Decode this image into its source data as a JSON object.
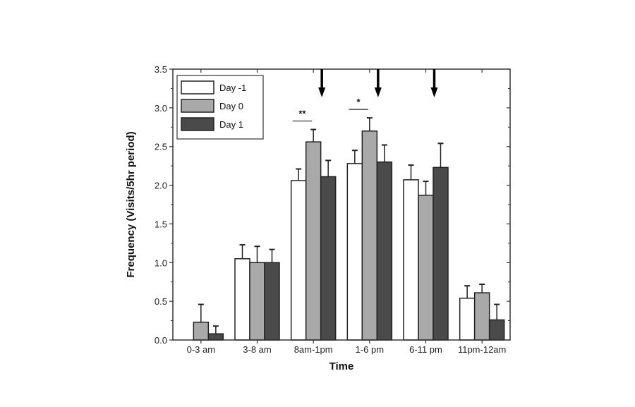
{
  "chart_data": {
    "type": "bar",
    "title": "",
    "xlabel": "Time",
    "ylabel": "Frequency (Visits/5hr period)",
    "ylim": [
      0,
      3.5
    ],
    "yticks": [
      "0.0",
      "0.5",
      "1.0",
      "1.5",
      "2.0",
      "2.5",
      "3.0",
      "3.5"
    ],
    "categories": [
      "0-3 am",
      "3-8 am",
      "8am-1pm",
      "1-6 pm",
      "6-11 pm",
      "11pm-12am"
    ],
    "series": [
      {
        "name": "Day -1",
        "color": "#ffffff",
        "values": [
          0.0,
          1.05,
          2.06,
          2.28,
          2.07,
          0.54
        ],
        "error_upper": [
          0.0,
          0.18,
          0.15,
          0.17,
          0.19,
          0.16
        ]
      },
      {
        "name": "Day 0",
        "color": "#a9a9a9",
        "values": [
          0.23,
          1.0,
          2.56,
          2.7,
          1.87,
          0.61
        ],
        "error_upper": [
          0.23,
          0.21,
          0.16,
          0.17,
          0.18,
          0.11
        ]
      },
      {
        "name": "Day 1",
        "color": "#4a4a4a",
        "values": [
          0.08,
          1.0,
          2.11,
          2.3,
          2.23,
          0.26
        ],
        "error_upper": [
          0.1,
          0.17,
          0.21,
          0.22,
          0.31,
          0.2
        ]
      }
    ],
    "legend_position": "top-left",
    "grid": false,
    "annotations": [
      {
        "type": "significance",
        "category": "8am-1pm",
        "text": "**"
      },
      {
        "type": "significance",
        "category": "1-6 pm",
        "text": "*"
      },
      {
        "type": "arrow-down",
        "category": "8am-1pm"
      },
      {
        "type": "arrow-down",
        "category": "1-6 pm"
      },
      {
        "type": "arrow-down",
        "category": "6-11 pm"
      }
    ]
  }
}
